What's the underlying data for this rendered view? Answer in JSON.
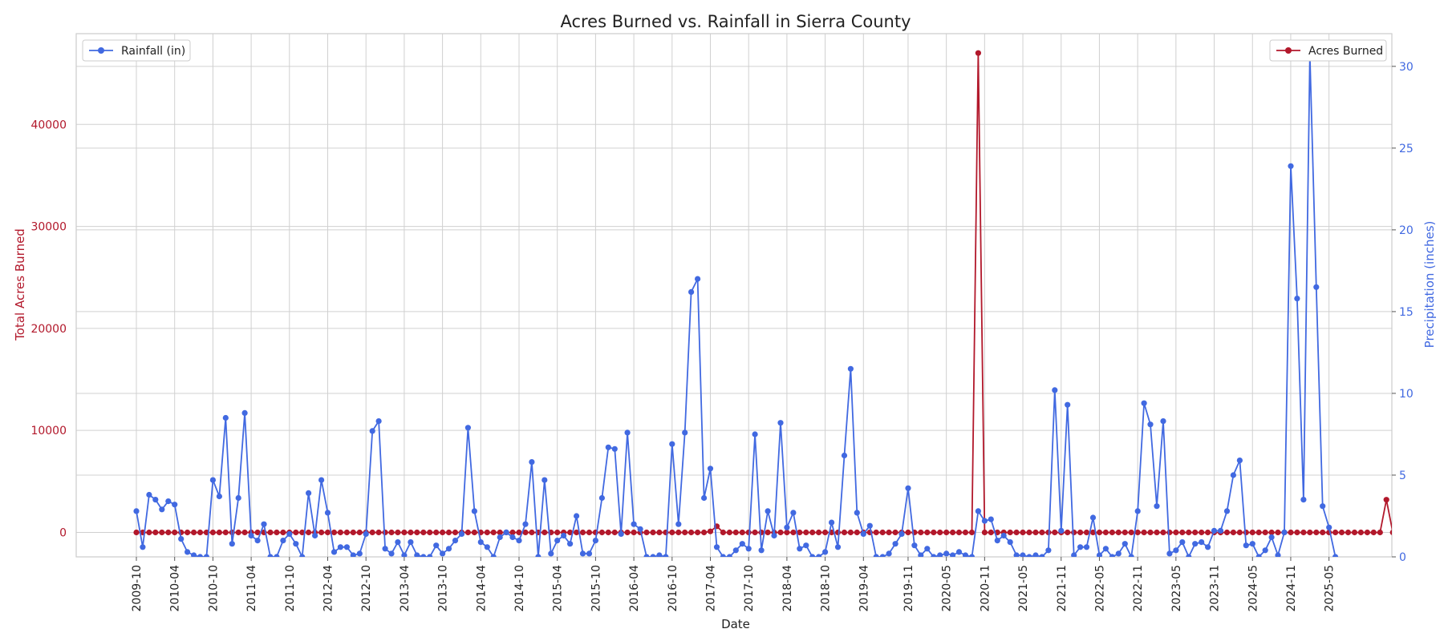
{
  "chart_data": {
    "type": "line",
    "title": "Acres Burned vs. Rainfall in Sierra County",
    "xlabel": "Date",
    "ylabel_left": "Total Acres Burned",
    "ylabel_right": "Precipitation (inches)",
    "start_month": "2009-10",
    "x_tick_labels": [
      "2009-10",
      "2010-04",
      "2010-10",
      "2011-04",
      "2011-10",
      "2012-04",
      "2012-10",
      "2013-04",
      "2013-10",
      "2014-04",
      "2014-10",
      "2015-04",
      "2015-10",
      "2016-04",
      "2016-10",
      "2017-04",
      "2017-10",
      "2018-04",
      "2018-10",
      "2019-04",
      "2019-11",
      "2020-05",
      "2020-11",
      "2021-05",
      "2021-11",
      "2022-05",
      "2022-11",
      "2023-05",
      "2023-11",
      "2024-05",
      "2024-11",
      "2025-05"
    ],
    "y_left_ticks": [
      0,
      10000,
      20000,
      30000,
      40000
    ],
    "y_left_lim": [
      -2400,
      48900
    ],
    "y_right_ticks": [
      0,
      5,
      10,
      15,
      20,
      25,
      30
    ],
    "y_right_lim": [
      0,
      32
    ],
    "grid": true,
    "colors": {
      "acres": "#b2182b",
      "rainfall": "#4169e1",
      "grid": "#d0d0d0",
      "frame": "#cccccc"
    },
    "series": [
      {
        "name": "Acres Burned",
        "axis": "left",
        "legend_position": "top-right",
        "values": [
          0,
          0,
          0,
          0,
          0,
          0,
          0,
          0,
          0,
          0,
          0,
          0,
          0,
          0,
          0,
          0,
          0,
          0,
          0,
          0,
          0,
          0,
          0,
          0,
          0,
          0,
          0,
          0,
          0,
          0,
          0,
          0,
          0,
          0,
          0,
          0,
          0,
          0,
          0,
          0,
          0,
          0,
          0,
          0,
          0,
          0,
          0,
          0,
          0,
          0,
          0,
          0,
          0,
          0,
          0,
          0,
          0,
          0,
          0,
          0,
          0,
          0,
          0,
          0,
          0,
          0,
          0,
          0,
          0,
          0,
          0,
          0,
          0,
          0,
          0,
          0,
          0,
          0,
          0,
          0,
          0,
          0,
          0,
          0,
          0,
          0,
          0,
          0,
          0,
          0,
          100,
          600,
          0,
          0,
          0,
          0,
          0,
          0,
          0,
          0,
          0,
          0,
          0,
          0,
          0,
          0,
          0,
          0,
          0,
          0,
          0,
          0,
          0,
          0,
          0,
          0,
          0,
          0,
          0,
          0,
          0,
          0,
          0,
          0,
          0,
          0,
          0,
          0,
          0,
          0,
          0,
          0,
          47000,
          0,
          0,
          0,
          0,
          0,
          0,
          0,
          0,
          0,
          0,
          0,
          0,
          0,
          0,
          0,
          0,
          0,
          0,
          0,
          0,
          0,
          0,
          0,
          0,
          0,
          0,
          0,
          0,
          0,
          0,
          0,
          0,
          0,
          0,
          0,
          0,
          0,
          0,
          0,
          0,
          0,
          0,
          0,
          0,
          0,
          0,
          0,
          0,
          0,
          0,
          0,
          0,
          0,
          0,
          0,
          0,
          0,
          0,
          0,
          0,
          0,
          0,
          0,
          3200,
          0,
          0,
          0,
          0,
          0,
          0,
          0,
          0,
          0,
          0,
          0
        ]
      },
      {
        "name": "Rainfall (in)",
        "axis": "right",
        "legend_position": "top-left",
        "values": [
          2.8,
          0.6,
          3.8,
          3.5,
          2.9,
          3.4,
          3.2,
          1.1,
          0.3,
          0.1,
          0,
          0,
          4.7,
          3.7,
          8.5,
          0.8,
          3.6,
          8.8,
          1.3,
          1.0,
          2.0,
          0,
          0,
          1.0,
          1.4,
          0.8,
          0,
          3.9,
          1.3,
          4.7,
          2.7,
          0.3,
          0.6,
          0.6,
          0.1,
          0.2,
          1.4,
          7.7,
          8.3,
          0.5,
          0.2,
          0.9,
          0.1,
          0.9,
          0.1,
          0,
          0,
          0.7,
          0.2,
          0.5,
          1.0,
          1.4,
          7.9,
          2.8,
          0.9,
          0.6,
          0,
          1.2,
          1.5,
          1.2,
          1.0,
          2.0,
          5.8,
          0,
          4.7,
          0.2,
          1.0,
          1.3,
          0.8,
          2.5,
          0.2,
          0.2,
          1.0,
          3.6,
          6.7,
          6.6,
          1.4,
          7.6,
          2.0,
          1.7,
          0,
          0,
          0.1,
          0,
          6.9,
          2.0,
          7.6,
          16.2,
          17.0,
          3.6,
          5.4,
          0.6,
          0,
          0,
          0.4,
          0.8,
          0.5,
          7.5,
          0.4,
          2.8,
          1.3,
          8.2,
          1.8,
          2.7,
          0.5,
          0.7,
          0,
          0,
          0.3,
          2.1,
          0.6,
          6.2,
          11.5,
          2.7,
          1.4,
          1.9,
          0,
          0,
          0.2,
          0.8,
          1.4,
          4.2,
          0.7,
          0.1,
          0.5,
          0,
          0.1,
          0.2,
          0.1,
          0.3,
          0.1,
          0,
          2.8,
          2.2,
          2.3,
          1.0,
          1.3,
          0.9,
          0.1,
          0.1,
          0,
          0.1,
          0,
          0.4,
          10.2,
          1.6,
          9.3,
          0.1,
          0.6,
          0.6,
          2.4,
          0.1,
          0.5,
          0,
          0.2,
          0.8,
          0,
          2.8,
          9.4,
          8.1,
          3.1,
          8.3,
          0.2,
          0.4,
          0.9,
          0,
          0.8,
          0.9,
          0.6,
          1.6,
          1.6,
          2.8,
          5.0,
          5.9,
          0.7,
          0.8,
          0,
          0.4,
          1.2,
          0.1,
          1.5,
          23.9,
          15.8,
          3.5,
          30.7,
          16.5,
          3.1,
          1.8,
          0
        ]
      }
    ]
  }
}
